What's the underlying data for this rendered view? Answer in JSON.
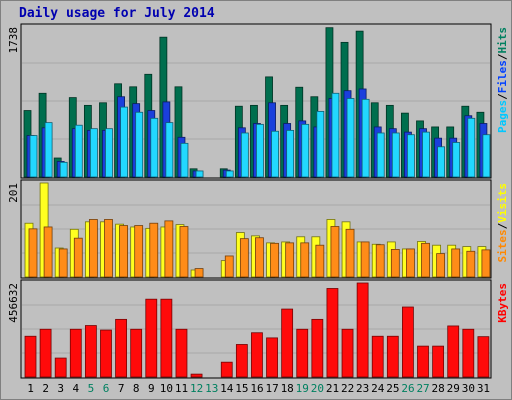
{
  "chart_data": {
    "type": "bar",
    "title": "Daily usage for July 2014",
    "categories": [
      "1",
      "2",
      "3",
      "4",
      "5",
      "6",
      "7",
      "8",
      "9",
      "10",
      "11",
      "12",
      "13",
      "14",
      "15",
      "16",
      "17",
      "18",
      "19",
      "20",
      "21",
      "22",
      "23",
      "24",
      "25",
      "26",
      "27",
      "28",
      "29",
      "30",
      "31"
    ],
    "weekend_days": [
      "5",
      "6",
      "12",
      "13",
      "19",
      "20",
      "26",
      "27"
    ],
    "panels": [
      {
        "name": "hits-files-pages",
        "ymax_label": "1738",
        "ymax": 1738,
        "legend": [
          {
            "text": "Pages",
            "color": "#00c8ff"
          },
          {
            "text": "/",
            "color": "#000000"
          },
          {
            "text": "Files",
            "color": "#0040ff"
          },
          {
            "text": "/",
            "color": "#000000"
          },
          {
            "text": "Hits",
            "color": "#008060"
          }
        ],
        "series": [
          {
            "name": "Hits",
            "color": "#006e4e",
            "values": [
              770,
              970,
              220,
              920,
              830,
              860,
              1080,
              1045,
              1190,
              1620,
              1045,
              95,
              0,
              95,
              820,
              830,
              1160,
              830,
              1040,
              930,
              1730,
              1560,
              1690,
              860,
              830,
              740,
              650,
              580,
              580,
              820,
              750
            ]
          },
          {
            "name": "Files",
            "color": "#1a3fdc",
            "values": [
              480,
              570,
              180,
              560,
              540,
              540,
              930,
              850,
              770,
              870,
              460,
              70,
              0,
              80,
              570,
              620,
              860,
              620,
              650,
              580,
              910,
              1000,
              1020,
              580,
              560,
              520,
              560,
              450,
              450,
              710,
              620
            ]
          },
          {
            "name": "Pages",
            "color": "#22d8ff",
            "values": [
              480,
              630,
              170,
              600,
              560,
              560,
              810,
              750,
              680,
              630,
              390,
              70,
              0,
              70,
              510,
              610,
              530,
              540,
              610,
              760,
              970,
              910,
              900,
              510,
              510,
              490,
              520,
              350,
              400,
              680,
              490
            ]
          }
        ]
      },
      {
        "name": "visits-sites",
        "ymax_label": "201",
        "ymax": 201,
        "legend": [
          {
            "text": "Sites",
            "color": "#ff8800"
          },
          {
            "text": "/",
            "color": "#000000"
          },
          {
            "text": "Visits",
            "color": "#ffff00"
          }
        ],
        "series": [
          {
            "name": "Visits",
            "color": "#ffff20",
            "values": [
              115,
              201,
              62,
              102,
              118,
              118,
              113,
              107,
              104,
              107,
              112,
              15,
              0,
              35,
              95,
              88,
              73,
              75,
              86,
              86,
              123,
              118,
              75,
              70,
              75,
              60,
              76,
              68,
              68,
              65,
              65
            ]
          },
          {
            "name": "Sites",
            "color": "#ff8c18",
            "values": [
              103,
              107,
              60,
              83,
              123,
              123,
              110,
              110,
              115,
              120,
              108,
              18,
              0,
              45,
              82,
              84,
              72,
              73,
              73,
              68,
              108,
              102,
              75,
              69,
              59,
              60,
              72,
              50,
              60,
              55,
              58
            ]
          }
        ]
      },
      {
        "name": "kbytes",
        "ymax_label": "456632",
        "ymax": 456632,
        "legend": [
          {
            "text": "KBytes",
            "color": "#ff0000"
          }
        ],
        "series": [
          {
            "name": "KBytes",
            "color": "#ff0a0a",
            "values": [
              198000,
              232000,
              92000,
              232000,
              250000,
              228000,
              280000,
              232000,
              378000,
              378000,
              232000,
              14000,
              0,
              72000,
              158000,
              215000,
              190000,
              330000,
              232000,
              280000,
              430000,
              232000,
              456632,
              198000,
              198000,
              340000,
              150000,
              150000,
              248000,
              232000,
              196000
            ]
          }
        ]
      }
    ],
    "grid": true
  }
}
